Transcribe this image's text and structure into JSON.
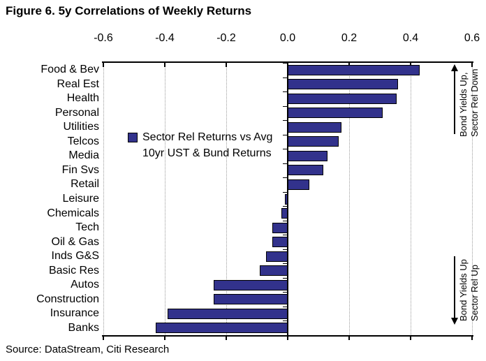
{
  "title": "Figure 6. 5y Correlations of Weekly Returns",
  "source": "Source: DataStream, Citi Research",
  "legend": {
    "line1": "Sector Rel Returns vs Avg",
    "line2": "10yr UST & Bund Returns"
  },
  "annotations": {
    "top": {
      "line1": "Bond Yields Up,",
      "line2": "Sector Rel Down",
      "arrow_direction": "up"
    },
    "bottom": {
      "line1": "Bond Yields Up",
      "line2": "Sector Rel Up",
      "arrow_direction": "down"
    }
  },
  "colors": {
    "bar_fill": "#32328C",
    "bar_border": "#000000",
    "grid": "#9A9A9A",
    "axis": "#000000",
    "text": "#000000",
    "background": "#FFFFFF"
  },
  "chart_data": {
    "type": "bar",
    "orientation": "horizontal",
    "title": "Figure 6. 5y Correlations of Weekly Returns",
    "series_name": "Sector Rel Returns vs Avg 10yr UST & Bund Returns",
    "categories": [
      "Food & Bev",
      "Real Est",
      "Health",
      "Personal",
      "Utilities",
      "Telcos",
      "Media",
      "Fin Svs",
      "Retail",
      "Leisure",
      "Chemicals",
      "Tech",
      "Oil & Gas",
      "Inds G&S",
      "Basic Res",
      "Autos",
      "Construction",
      "Insurance",
      "Banks"
    ],
    "values": [
      0.43,
      0.36,
      0.355,
      0.31,
      0.175,
      0.165,
      0.13,
      0.115,
      0.07,
      -0.01,
      -0.02,
      -0.05,
      -0.05,
      -0.07,
      -0.09,
      -0.24,
      -0.24,
      -0.39,
      -0.43
    ],
    "xlim": [
      -0.6,
      0.6
    ],
    "x_ticks": [
      -0.6,
      -0.4,
      -0.2,
      0.0,
      0.2,
      0.4,
      0.6
    ],
    "tick_labels": [
      "-0.6",
      "-0.4",
      "-0.2",
      "0.0",
      "0.2",
      "0.4",
      "0.6"
    ],
    "xlabel": "",
    "ylabel": "",
    "grid": "vertical-dotted",
    "legend_position": "inside-middle-left",
    "axis_position": "top",
    "source": "Source: DataStream, Citi Research"
  }
}
